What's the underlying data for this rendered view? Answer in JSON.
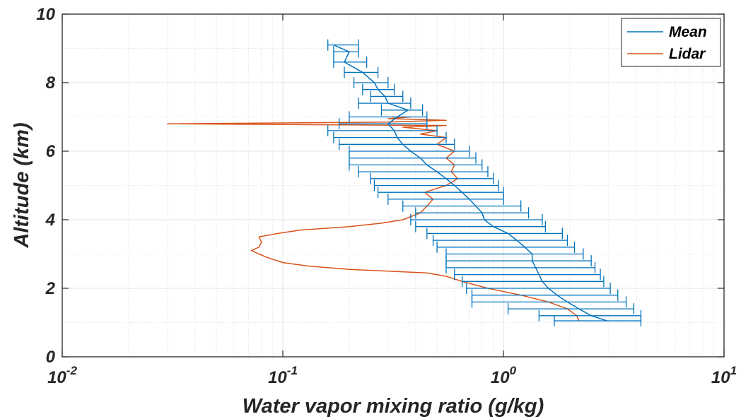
{
  "chart_data": {
    "type": "line",
    "title": "",
    "xlabel": "Water vapor mixing ratio (g/kg)",
    "ylabel": "Altitude (km)",
    "xscale": "log",
    "xlim": [
      0.01,
      10
    ],
    "ylim": [
      0,
      10
    ],
    "grid": true,
    "legend_position": "top-right",
    "x_ticks": [
      {
        "base": "10",
        "exp": "-2"
      },
      {
        "base": "10",
        "exp": "-1"
      },
      {
        "base": "10",
        "exp": "0"
      },
      {
        "base": "10",
        "exp": "1"
      }
    ],
    "y_ticks": [
      "0",
      "2",
      "4",
      "6",
      "8",
      "10"
    ],
    "series": [
      {
        "name": "Mean",
        "color": "#0072bd",
        "error_bars": true,
        "points": [
          {
            "y": 1.05,
            "x": 2.95,
            "lo": 1.7,
            "hi": 4.2
          },
          {
            "y": 1.2,
            "x": 2.5,
            "lo": 1.45,
            "hi": 4.2
          },
          {
            "y": 1.4,
            "x": 2.2,
            "lo": 1.05,
            "hi": 3.9
          },
          {
            "y": 1.6,
            "x": 1.95,
            "lo": 0.72,
            "hi": 3.6
          },
          {
            "y": 1.8,
            "x": 1.75,
            "lo": 0.72,
            "hi": 3.3
          },
          {
            "y": 2.0,
            "x": 1.6,
            "lo": 0.68,
            "hi": 3.05
          },
          {
            "y": 2.2,
            "x": 1.5,
            "lo": 0.65,
            "hi": 2.85
          },
          {
            "y": 2.4,
            "x": 1.45,
            "lo": 0.6,
            "hi": 2.75
          },
          {
            "y": 2.6,
            "x": 1.4,
            "lo": 0.55,
            "hi": 2.6
          },
          {
            "y": 2.8,
            "x": 1.35,
            "lo": 0.55,
            "hi": 2.5
          },
          {
            "y": 3.0,
            "x": 1.35,
            "lo": 0.55,
            "hi": 2.3
          },
          {
            "y": 3.2,
            "x": 1.25,
            "lo": 0.5,
            "hi": 2.1
          },
          {
            "y": 3.4,
            "x": 1.15,
            "lo": 0.48,
            "hi": 1.95
          },
          {
            "y": 3.6,
            "x": 1.05,
            "lo": 0.45,
            "hi": 1.85
          },
          {
            "y": 3.8,
            "x": 0.9,
            "lo": 0.4,
            "hi": 1.55
          },
          {
            "y": 4.0,
            "x": 0.82,
            "lo": 0.38,
            "hi": 1.5
          },
          {
            "y": 4.2,
            "x": 0.8,
            "lo": 0.4,
            "hi": 1.3
          },
          {
            "y": 4.4,
            "x": 0.75,
            "lo": 0.35,
            "hi": 1.2
          },
          {
            "y": 4.6,
            "x": 0.7,
            "lo": 0.3,
            "hi": 1.0
          },
          {
            "y": 4.8,
            "x": 0.65,
            "lo": 0.27,
            "hi": 1.0
          },
          {
            "y": 5.0,
            "x": 0.6,
            "lo": 0.26,
            "hi": 0.95
          },
          {
            "y": 5.2,
            "x": 0.55,
            "lo": 0.25,
            "hi": 0.9
          },
          {
            "y": 5.4,
            "x": 0.5,
            "lo": 0.22,
            "hi": 0.85
          },
          {
            "y": 5.6,
            "x": 0.45,
            "lo": 0.2,
            "hi": 0.8
          },
          {
            "y": 5.8,
            "x": 0.42,
            "lo": 0.2,
            "hi": 0.75
          },
          {
            "y": 6.0,
            "x": 0.38,
            "lo": 0.2,
            "hi": 0.7
          },
          {
            "y": 6.2,
            "x": 0.35,
            "lo": 0.18,
            "hi": 0.6
          },
          {
            "y": 6.4,
            "x": 0.33,
            "lo": 0.17,
            "hi": 0.55
          },
          {
            "y": 6.6,
            "x": 0.32,
            "lo": 0.16,
            "hi": 0.5
          },
          {
            "y": 6.8,
            "x": 0.3,
            "lo": 0.18,
            "hi": 0.45
          },
          {
            "y": 7.0,
            "x": 0.33,
            "lo": 0.2,
            "hi": 0.45
          },
          {
            "y": 7.2,
            "x": 0.37,
            "lo": 0.28,
            "hi": 0.43
          },
          {
            "y": 7.4,
            "x": 0.3,
            "lo": 0.22,
            "hi": 0.38
          },
          {
            "y": 7.6,
            "x": 0.29,
            "lo": 0.25,
            "hi": 0.35
          },
          {
            "y": 7.8,
            "x": 0.27,
            "lo": 0.23,
            "hi": 0.32
          },
          {
            "y": 8.0,
            "x": 0.26,
            "lo": 0.21,
            "hi": 0.3
          },
          {
            "y": 8.3,
            "x": 0.23,
            "lo": 0.19,
            "hi": 0.27
          },
          {
            "y": 8.6,
            "x": 0.19,
            "lo": 0.17,
            "hi": 0.24
          },
          {
            "y": 8.9,
            "x": 0.2,
            "lo": 0.17,
            "hi": 0.22
          },
          {
            "y": 9.1,
            "x": 0.17,
            "lo": 0.16,
            "hi": 0.22
          }
        ]
      },
      {
        "name": "Lidar",
        "color": "#d95319",
        "points": [
          {
            "y": 1.05,
            "x": 2.2
          },
          {
            "y": 1.2,
            "x": 2.15
          },
          {
            "y": 1.4,
            "x": 1.95
          },
          {
            "y": 1.6,
            "x": 1.6
          },
          {
            "y": 1.8,
            "x": 1.2
          },
          {
            "y": 2.0,
            "x": 0.85
          },
          {
            "y": 2.2,
            "x": 0.65
          },
          {
            "y": 2.35,
            "x": 0.55
          },
          {
            "y": 2.45,
            "x": 0.45
          },
          {
            "y": 2.55,
            "x": 0.2
          },
          {
            "y": 2.65,
            "x": 0.13
          },
          {
            "y": 2.75,
            "x": 0.1
          },
          {
            "y": 2.9,
            "x": 0.085
          },
          {
            "y": 3.0,
            "x": 0.078
          },
          {
            "y": 3.1,
            "x": 0.072
          },
          {
            "y": 3.2,
            "x": 0.078
          },
          {
            "y": 3.35,
            "x": 0.08
          },
          {
            "y": 3.5,
            "x": 0.078
          },
          {
            "y": 3.6,
            "x": 0.095
          },
          {
            "y": 3.7,
            "x": 0.12
          },
          {
            "y": 3.8,
            "x": 0.2
          },
          {
            "y": 3.9,
            "x": 0.28
          },
          {
            "y": 4.0,
            "x": 0.35
          },
          {
            "y": 4.2,
            "x": 0.42
          },
          {
            "y": 4.4,
            "x": 0.45
          },
          {
            "y": 4.6,
            "x": 0.48
          },
          {
            "y": 4.8,
            "x": 0.44
          },
          {
            "y": 5.0,
            "x": 0.55
          },
          {
            "y": 5.2,
            "x": 0.62
          },
          {
            "y": 5.4,
            "x": 0.58
          },
          {
            "y": 5.6,
            "x": 0.6
          },
          {
            "y": 5.8,
            "x": 0.55
          },
          {
            "y": 6.0,
            "x": 0.6
          },
          {
            "y": 6.2,
            "x": 0.5
          },
          {
            "y": 6.4,
            "x": 0.55
          },
          {
            "y": 6.5,
            "x": 0.42
          },
          {
            "y": 6.6,
            "x": 0.5
          },
          {
            "y": 6.7,
            "x": 0.35
          },
          {
            "y": 6.75,
            "x": 0.55
          },
          {
            "y": 6.8,
            "x": 0.03
          },
          {
            "y": 6.85,
            "x": 0.3
          },
          {
            "y": 6.9,
            "x": 0.55
          },
          {
            "y": 6.95,
            "x": 0.3
          },
          {
            "y": 7.0,
            "x": 0.38
          }
        ]
      }
    ]
  }
}
